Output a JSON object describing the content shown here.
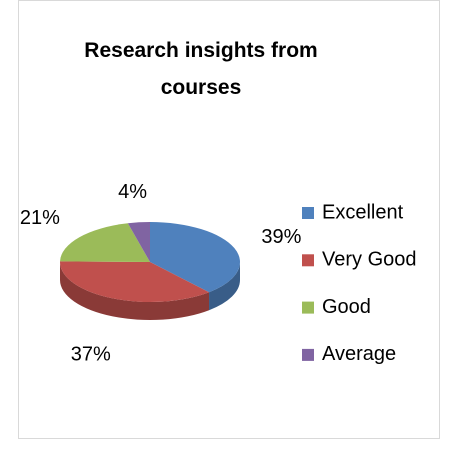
{
  "chart_data": {
    "type": "pie3d",
    "title": "Research insights from courses",
    "categories": [
      "Excellent",
      "Very Good",
      "Good",
      "Average"
    ],
    "values": [
      39,
      37,
      21,
      4
    ],
    "value_labels": [
      "39%",
      "37%",
      "21%",
      "4%"
    ],
    "colors": [
      "#4f81bd",
      "#c0504d",
      "#9bbb59",
      "#8064a2"
    ],
    "legend": "right"
  }
}
